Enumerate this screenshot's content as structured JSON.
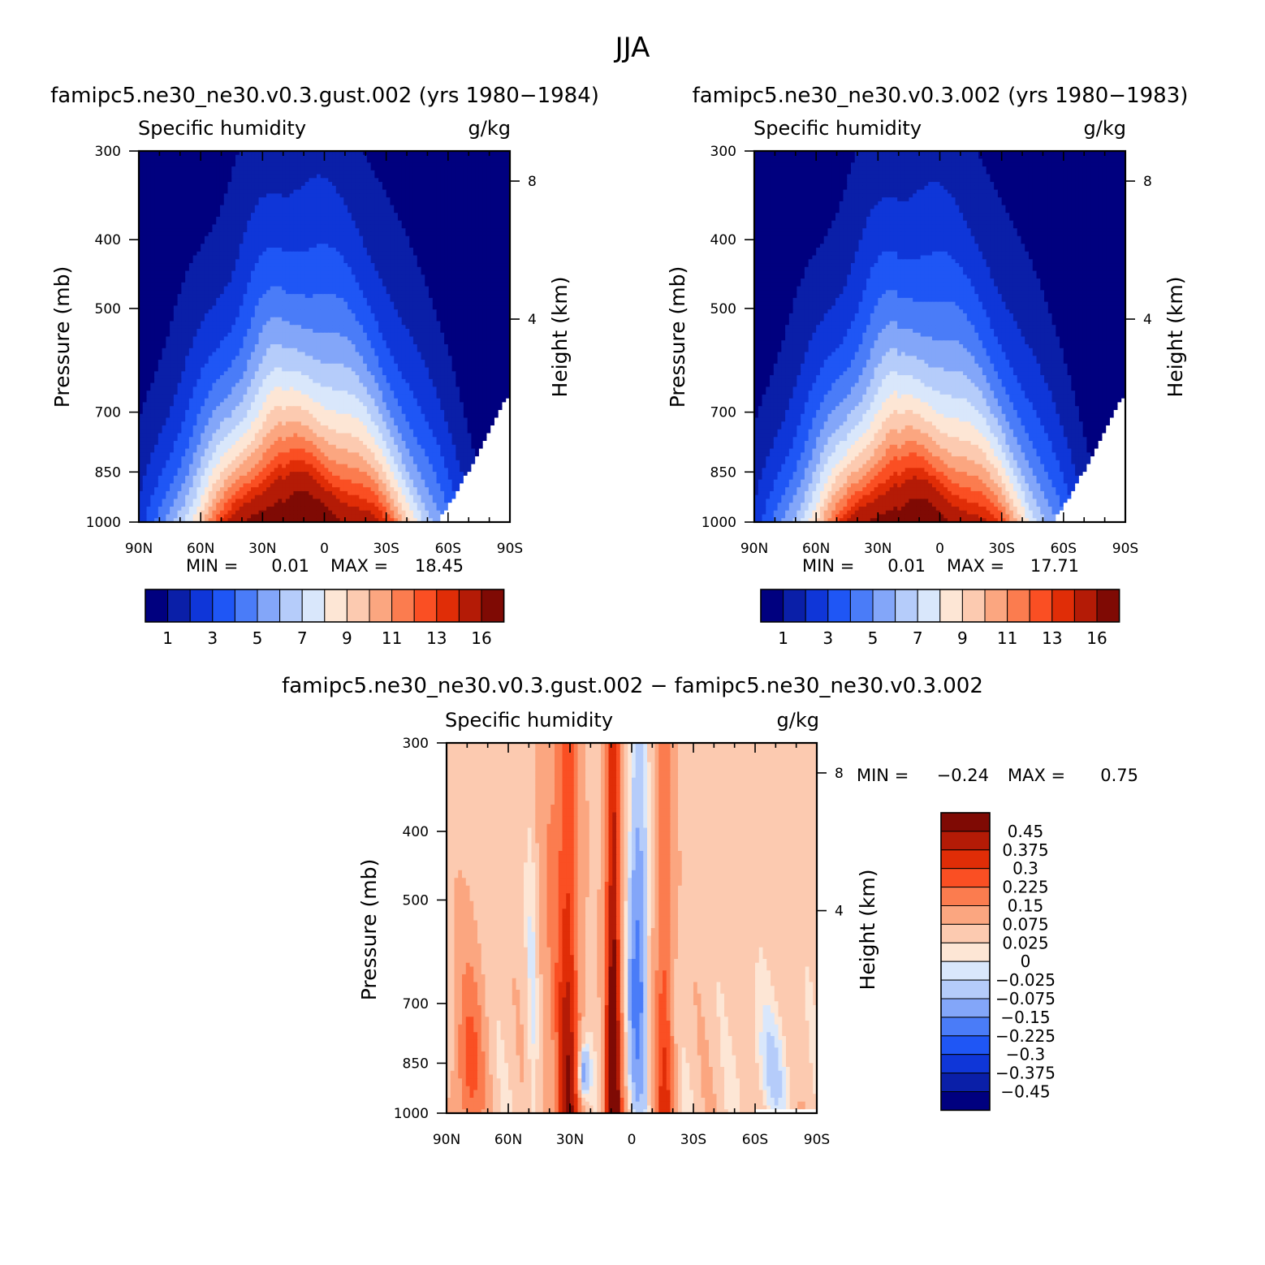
{
  "chart_data": {
    "title": "JJA",
    "type": "heatmap",
    "panels": [
      {
        "id": "left",
        "title": "famipc5.ne30_ne30.v0.3.gust.002 (yrs 1980−1984)",
        "field": "Specific humidity",
        "units": "g/kg",
        "ylabel": "Pressure (mb)",
        "ylabel_right": "Height (km)",
        "x_ticks": [
          "90N",
          "60N",
          "30N",
          "0",
          "30S",
          "60S",
          "90S"
        ],
        "y_ticks": [
          "300",
          "400",
          "500",
          "700",
          "850",
          "1000"
        ],
        "y_ticks_right": [
          "8",
          "4"
        ],
        "min_label": "MIN =",
        "min": "0.01",
        "max_label": "MAX =",
        "max": "18.45",
        "colorbar": {
          "labels": [
            "1",
            "3",
            "5",
            "7",
            "9",
            "11",
            "13",
            "16"
          ],
          "levels": [
            1,
            2,
            3,
            4,
            5,
            6,
            7,
            8,
            9,
            10,
            11,
            12,
            13,
            14,
            16
          ]
        }
      },
      {
        "id": "right",
        "title": "famipc5.ne30_ne30.v0.3.002 (yrs 1980−1983)",
        "field": "Specific humidity",
        "units": "g/kg",
        "ylabel": "Pressure (mb)",
        "ylabel_right": "Height (km)",
        "x_ticks": [
          "90N",
          "60N",
          "30N",
          "0",
          "30S",
          "60S",
          "90S"
        ],
        "y_ticks": [
          "300",
          "400",
          "500",
          "700",
          "850",
          "1000"
        ],
        "y_ticks_right": [
          "8",
          "4"
        ],
        "min_label": "MIN =",
        "min": "0.01",
        "max_label": "MAX =",
        "max": "17.71",
        "colorbar": {
          "labels": [
            "1",
            "3",
            "5",
            "7",
            "9",
            "11",
            "13",
            "16"
          ],
          "levels": [
            1,
            2,
            3,
            4,
            5,
            6,
            7,
            8,
            9,
            10,
            11,
            12,
            13,
            14,
            16
          ]
        }
      },
      {
        "id": "diff",
        "title": "famipc5.ne30_ne30.v0.3.gust.002 − famipc5.ne30_ne30.v0.3.002",
        "field": "Specific humidity",
        "units": "g/kg",
        "ylabel": "Pressure (mb)",
        "ylabel_right": "Height (km)",
        "x_ticks": [
          "90N",
          "60N",
          "30N",
          "0",
          "30S",
          "60S",
          "90S"
        ],
        "y_ticks": [
          "300",
          "400",
          "500",
          "700",
          "850",
          "1000"
        ],
        "y_ticks_right": [
          "8",
          "4"
        ],
        "min_label": "MIN =",
        "min": "−0.24",
        "max_label": "MAX =",
        "max": "0.75",
        "colorbar": {
          "labels": [
            "0.45",
            "0.375",
            "0.3",
            "0.225",
            "0.15",
            "0.075",
            "0.025",
            "0",
            "−0.025",
            "−0.075",
            "−0.15",
            "−0.225",
            "−0.3",
            "−0.375",
            "−0.45"
          ],
          "levels": [
            0.45,
            0.375,
            0.3,
            0.225,
            0.15,
            0.075,
            0.025,
            0,
            -0.025,
            -0.075,
            -0.15,
            -0.225,
            -0.3,
            -0.375,
            -0.45
          ]
        }
      }
    ],
    "colormap": [
      "#00007f",
      "#0a1fa8",
      "#0f36d8",
      "#1f56f5",
      "#4a7cf8",
      "#83a6f9",
      "#b5ccfa",
      "#d9e7fb",
      "#fde6d5",
      "#fccab0",
      "#fba680",
      "#fb7c4f",
      "#fa4f23",
      "#e02d07",
      "#b41b06",
      "#7f0a04"
    ]
  }
}
